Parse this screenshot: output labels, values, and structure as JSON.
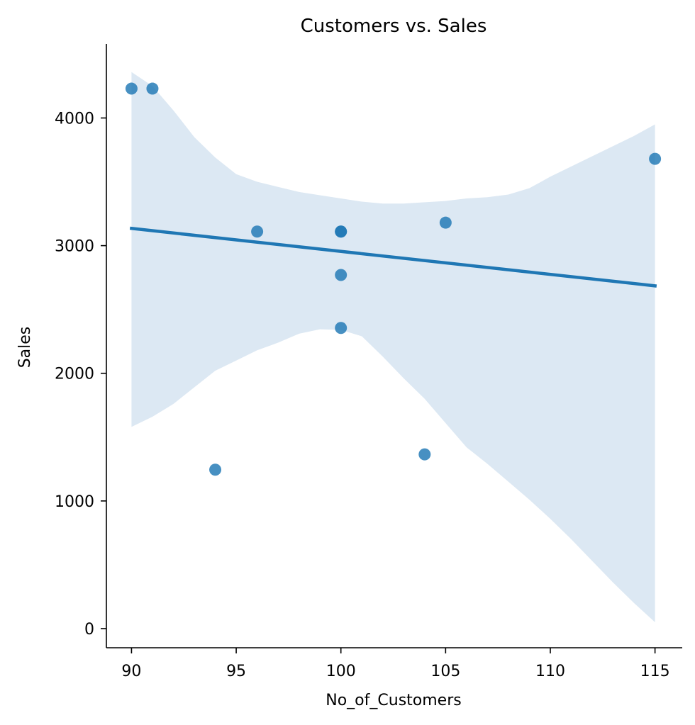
{
  "chart_data": {
    "type": "scatter",
    "title": "Customers vs. Sales",
    "xlabel": "No_of_Customers",
    "ylabel": "Sales",
    "xlim": [
      88.8,
      116.3
    ],
    "ylim": [
      -150,
      4580
    ],
    "xticks": [
      90,
      95,
      100,
      105,
      110,
      115
    ],
    "yticks": [
      0,
      1000,
      2000,
      3000,
      4000
    ],
    "grid": false,
    "points": [
      {
        "x": 90,
        "y": 4230
      },
      {
        "x": 91,
        "y": 4230
      },
      {
        "x": 96,
        "y": 3110
      },
      {
        "x": 100,
        "y": 3110
      },
      {
        "x": 100,
        "y": 3110
      },
      {
        "x": 100,
        "y": 2770
      },
      {
        "x": 100,
        "y": 2355
      },
      {
        "x": 105,
        "y": 3180
      },
      {
        "x": 115,
        "y": 3680
      },
      {
        "x": 94,
        "y": 1245
      },
      {
        "x": 104,
        "y": 1365
      }
    ],
    "regression_line": [
      {
        "x": 90,
        "y": 3135
      },
      {
        "x": 115,
        "y": 2685
      }
    ],
    "confidence_band": [
      {
        "x": 90,
        "lower": 1580,
        "upper": 4360
      },
      {
        "x": 91,
        "lower": 1660,
        "upper": 4250
      },
      {
        "x": 92,
        "lower": 1760,
        "upper": 4060
      },
      {
        "x": 93,
        "lower": 1890,
        "upper": 3850
      },
      {
        "x": 94,
        "lower": 2020,
        "upper": 3690
      },
      {
        "x": 95,
        "lower": 2100,
        "upper": 3560
      },
      {
        "x": 96,
        "lower": 2180,
        "upper": 3500
      },
      {
        "x": 97,
        "lower": 2240,
        "upper": 3460
      },
      {
        "x": 98,
        "lower": 2310,
        "upper": 3420
      },
      {
        "x": 99,
        "lower": 2345,
        "upper": 3395
      },
      {
        "x": 100,
        "lower": 2340,
        "upper": 3370
      },
      {
        "x": 101,
        "lower": 2290,
        "upper": 3345
      },
      {
        "x": 102,
        "lower": 2130,
        "upper": 3330
      },
      {
        "x": 103,
        "lower": 1960,
        "upper": 3330
      },
      {
        "x": 104,
        "lower": 1800,
        "upper": 3340
      },
      {
        "x": 105,
        "lower": 1610,
        "upper": 3350
      },
      {
        "x": 106,
        "lower": 1420,
        "upper": 3370
      },
      {
        "x": 107,
        "lower": 1290,
        "upper": 3380
      },
      {
        "x": 108,
        "lower": 1150,
        "upper": 3400
      },
      {
        "x": 109,
        "lower": 1010,
        "upper": 3450
      },
      {
        "x": 110,
        "lower": 860,
        "upper": 3540
      },
      {
        "x": 111,
        "lower": 700,
        "upper": 3620
      },
      {
        "x": 112,
        "lower": 530,
        "upper": 3700
      },
      {
        "x": 113,
        "lower": 360,
        "upper": 3780
      },
      {
        "x": 114,
        "lower": 200,
        "upper": 3860
      },
      {
        "x": 115,
        "lower": 50,
        "upper": 3950
      }
    ],
    "colors": {
      "point": "#1f77b4",
      "line": "#1f77b4",
      "band": "#dce8f3"
    }
  }
}
